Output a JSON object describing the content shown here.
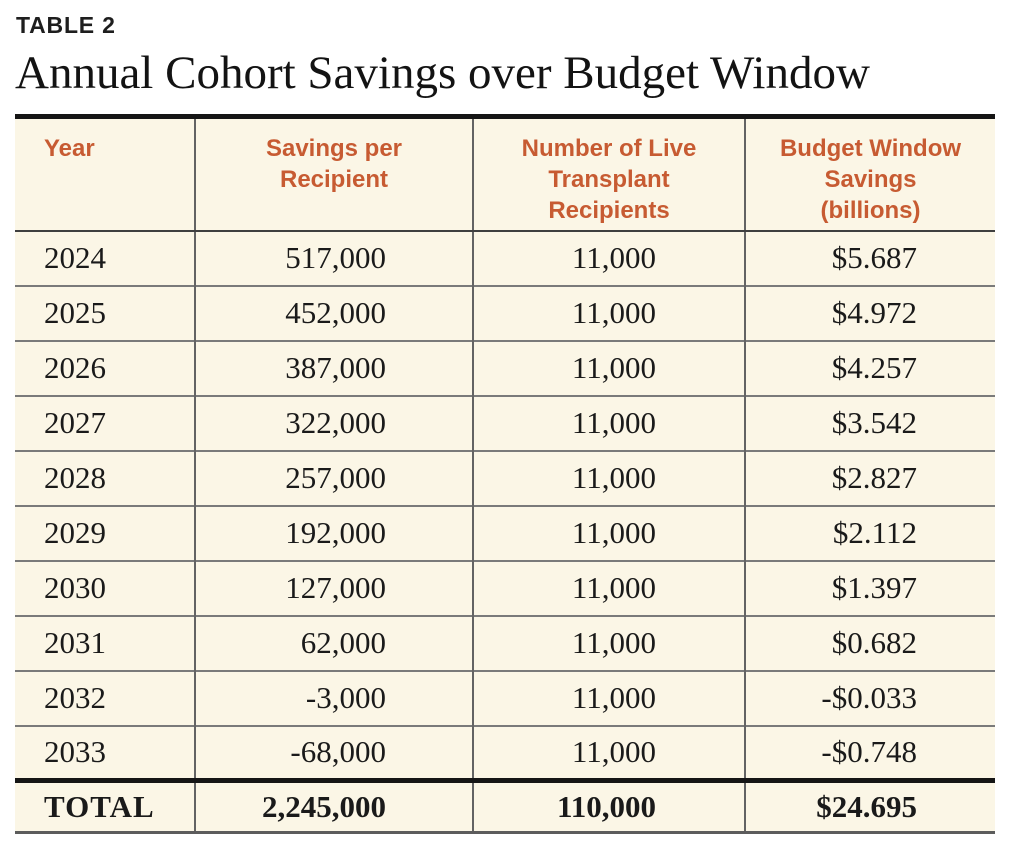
{
  "page": {
    "kicker": "TABLE 2",
    "title": "Annual Cohort Savings over Budget Window"
  },
  "colors": {
    "table_background": "#fbf6e6",
    "header_text": "#c75b32",
    "body_text": "#1a1a1a",
    "heavy_rule": "#151515",
    "light_rule": "#7a7a7a"
  },
  "table": {
    "columns": [
      {
        "label": "Year"
      },
      {
        "label": "Savings per\nRecipient"
      },
      {
        "label": "Number of Live\nTransplant\nRecipients"
      },
      {
        "label": "Budget Window\nSavings\n(billions)"
      }
    ],
    "rows": [
      [
        "2024",
        "517,000",
        "11,000",
        "$5.687"
      ],
      [
        "2025",
        "452,000",
        "11,000",
        "$4.972"
      ],
      [
        "2026",
        "387,000",
        "11,000",
        "$4.257"
      ],
      [
        "2027",
        "322,000",
        "11,000",
        "$3.542"
      ],
      [
        "2028",
        "257,000",
        "11,000",
        "$2.827"
      ],
      [
        "2029",
        "192,000",
        "11,000",
        "$2.112"
      ],
      [
        "2030",
        "127,000",
        "11,000",
        "$1.397"
      ],
      [
        "2031",
        "62,000",
        "11,000",
        "$0.682"
      ],
      [
        "2032",
        "-3,000",
        "11,000",
        "-$0.033"
      ],
      [
        "2033",
        "-68,000",
        "11,000",
        "-$0.748"
      ]
    ],
    "total": [
      "TOTAL",
      "2,245,000",
      "110,000",
      "$24.695"
    ]
  }
}
